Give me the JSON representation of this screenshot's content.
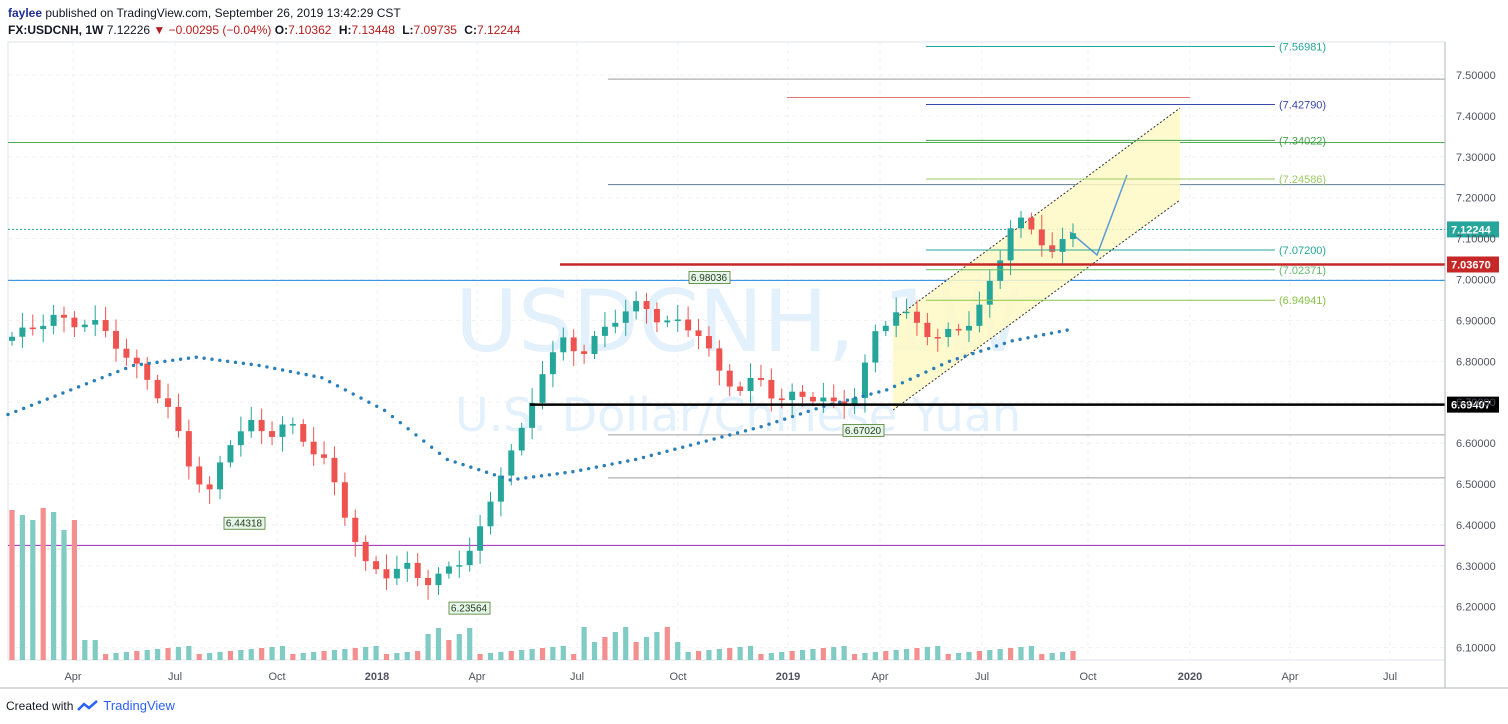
{
  "header": {
    "publisher": "faylee",
    "published_text": "published on TradingView.com, September 26, 2019 13:42:29 CST",
    "symbol": "FX:USDCNH, 1W",
    "last": "7.12226",
    "change": "▼ −0.00295 (−0.04%)",
    "o_label": "O:",
    "o_val": "7.10362",
    "h_label": "H:",
    "h_val": "7.13448",
    "l_label": "L:",
    "l_val": "7.09735",
    "c_label": "C:",
    "c_val": "7.12244"
  },
  "watermark": {
    "symbol": "USDCNH, 1W",
    "description": "U.S. Dollar/Chinese Yuan"
  },
  "footer": {
    "created_with": "Created with",
    "brand": "TradingView"
  },
  "colors": {
    "up": "#26a69a",
    "down": "#ef5350",
    "up_vol": "#80cbc4",
    "down_vol": "#f48f8f",
    "ma": "#2a7fb8",
    "channel_fill": "#fff9c4",
    "support": "#000000",
    "resistance": "#c62828",
    "price_tag": "#26a69a"
  },
  "chart_data": {
    "type": "candlestick",
    "symbol": "FX:USDCNH",
    "timeframe": "1W",
    "y_range": [
      6.06,
      7.56
    ],
    "y_ticks": [
      "7.50000",
      "7.40000",
      "7.30000",
      "7.20000",
      "7.10000",
      "7.00000",
      "6.90000",
      "6.80000",
      "6.70000",
      "6.60000",
      "6.50000",
      "6.40000",
      "6.30000",
      "6.20000",
      "6.10000"
    ],
    "x_ticks": [
      "Apr",
      "Jul",
      "Oct",
      "2018",
      "Apr",
      "Jul",
      "Oct",
      "2019",
      "Apr",
      "Jul",
      "Oct",
      "2020",
      "Apr",
      "Jul"
    ],
    "price_path": [
      6.86,
      6.88,
      6.91,
      6.89,
      6.9,
      6.86,
      6.8,
      6.75,
      6.68,
      6.55,
      6.47,
      6.6,
      6.65,
      6.62,
      6.65,
      6.6,
      6.55,
      6.42,
      6.3,
      6.28,
      6.3,
      6.26,
      6.28,
      6.32,
      6.4,
      6.55,
      6.63,
      6.78,
      6.85,
      6.82,
      6.87,
      6.92,
      6.94,
      6.9,
      6.89,
      6.87,
      6.77,
      6.73,
      6.76,
      6.7,
      6.72,
      6.71,
      6.69,
      6.72,
      6.88,
      6.92,
      6.9,
      6.85,
      6.88,
      6.9,
      7.02,
      7.15,
      7.12,
      7.06,
      7.12
    ],
    "moving_average": [
      6.67,
      6.73,
      6.79,
      6.81,
      6.79,
      6.76,
      6.68,
      6.56,
      6.51,
      6.53,
      6.56,
      6.6,
      6.64,
      6.69,
      6.73,
      6.8,
      6.85,
      6.88
    ],
    "current_price": {
      "value": 7.12244,
      "label": "7.12244"
    },
    "levels": [
      {
        "label": "7.03670",
        "value": 7.0367,
        "style": "resistance"
      },
      {
        "label": "6.69407",
        "value": 6.69407,
        "style": "support"
      }
    ],
    "fib_labels": [
      {
        "label": "(7.56981)",
        "value": 7.56981
      },
      {
        "label": "(7.42790)",
        "value": 7.4279
      },
      {
        "label": "(7.34022)",
        "value": 7.34022
      },
      {
        "label": "(7.24586)",
        "value": 7.24586
      },
      {
        "label": "(7.07200)",
        "value": 7.072
      },
      {
        "label": "(7.02371)",
        "value": 7.02371
      },
      {
        "label": "(6.94941)",
        "value": 6.94941
      }
    ],
    "horizontal_lines": [
      7.49,
      7.335,
      7.232,
      6.998,
      6.62,
      6.515,
      6.35
    ],
    "annotations": [
      {
        "label": "6.44318",
        "value": 6.44318
      },
      {
        "label": "6.23564",
        "value": 6.23564
      },
      {
        "label": "6.98036",
        "value": 6.98036
      },
      {
        "label": "6.67020",
        "value": 6.6702
      }
    ]
  }
}
